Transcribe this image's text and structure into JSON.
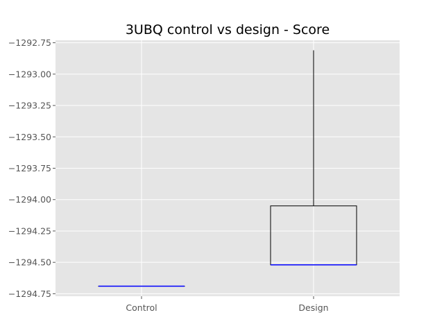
{
  "chart_data": {
    "type": "box",
    "title": "3UBQ control vs design - Score",
    "xlabel": "",
    "ylabel": "",
    "categories": [
      "Control",
      "Design"
    ],
    "boxes": [
      {
        "category": "Control",
        "min": -1294.69,
        "q1": -1294.69,
        "median": -1294.69,
        "q3": -1294.69,
        "max": -1294.69
      },
      {
        "category": "Design",
        "min": -1294.52,
        "q1": -1294.52,
        "median": -1294.52,
        "q3": -1294.05,
        "max": -1292.81
      }
    ],
    "ylim": [
      -1294.77,
      -1292.73
    ],
    "yticks": [
      -1292.75,
      -1293.0,
      -1293.25,
      -1293.5,
      -1293.75,
      -1294.0,
      -1294.25,
      -1294.5,
      -1294.75
    ],
    "ytick_labels": [
      "−1292.75",
      "−1293.00",
      "−1293.25",
      "−1293.50",
      "−1293.75",
      "−1294.00",
      "−1294.25",
      "−1294.50",
      "−1294.75"
    ],
    "grid": true,
    "colors": {
      "background": "#e5e5e5",
      "grid": "#ffffff",
      "box": "#000000",
      "median": "#0000ff",
      "tick_text": "#555555"
    }
  }
}
